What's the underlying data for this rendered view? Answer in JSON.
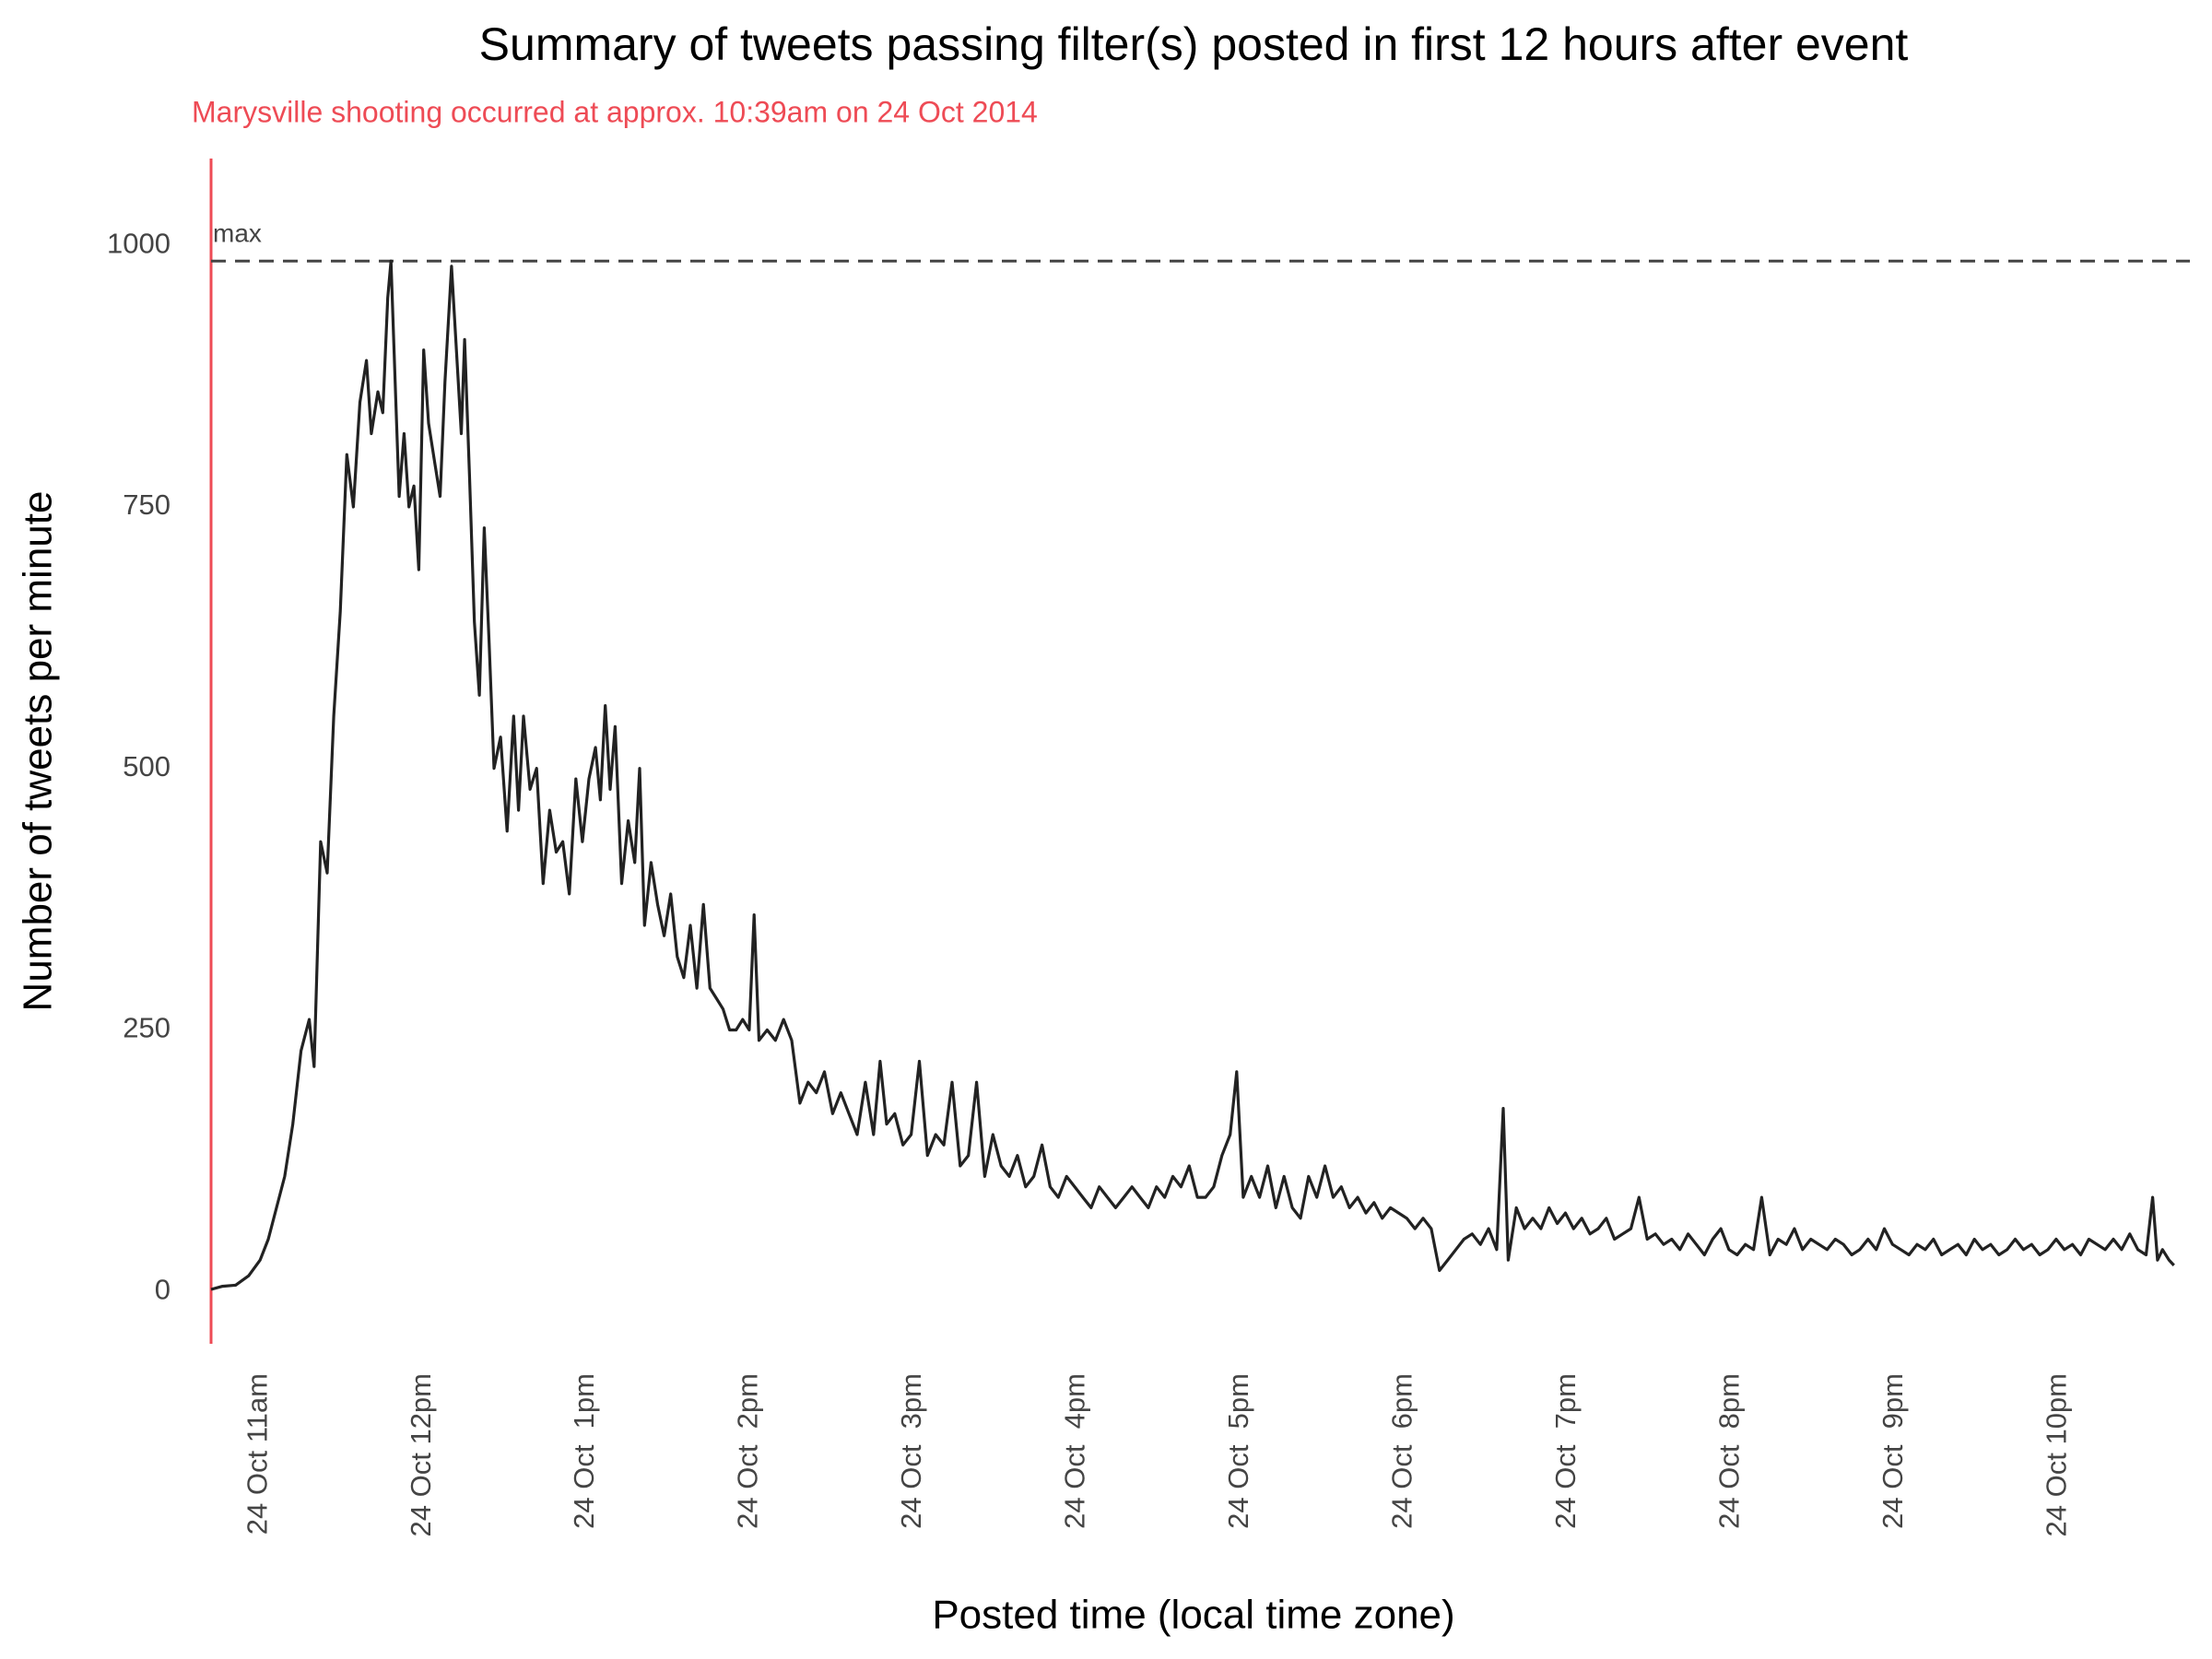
{
  "chart_data": {
    "type": "line",
    "title": "Summary of tweets passing filter(s) posted in first 12 hours after event",
    "subtitle": "Marysville shooting occurred at approx. 10:39am on 24 Oct 2014",
    "x_label": "Posted time (local time zone)",
    "y_label": "Number of tweets per minute",
    "color": "#222222",
    "accent_color": "#ee4b55",
    "vline": {
      "x": 10.65
    },
    "hline": {
      "y": 985,
      "label": "max",
      "color": "#444444",
      "dashed": true
    },
    "grid": false,
    "xlim": [
      10.65,
      22.68
    ],
    "ylim": [
      -50,
      1083
    ],
    "yticks": [
      0,
      250,
      500,
      750,
      1000
    ],
    "xticks": [
      {
        "value": 11,
        "label": "24 Oct 11am"
      },
      {
        "value": 12,
        "label": "24 Oct 12pm"
      },
      {
        "value": 13,
        "label": "24 Oct  1pm"
      },
      {
        "value": 14,
        "label": "24 Oct  2pm"
      },
      {
        "value": 15,
        "label": "24 Oct  3pm"
      },
      {
        "value": 16,
        "label": "24 Oct  4pm"
      },
      {
        "value": 17,
        "label": "24 Oct  5pm"
      },
      {
        "value": 18,
        "label": "24 Oct  6pm"
      },
      {
        "value": 19,
        "label": "24 Oct  7pm"
      },
      {
        "value": 20,
        "label": "24 Oct  8pm"
      },
      {
        "value": 21,
        "label": "24 Oct  9pm"
      },
      {
        "value": 22,
        "label": "24 Oct 10pm"
      }
    ],
    "x": [
      10.65,
      10.72,
      10.8,
      10.88,
      10.95,
      11.0,
      11.05,
      11.1,
      11.15,
      11.2,
      11.25,
      11.28,
      11.32,
      11.36,
      11.4,
      11.44,
      11.48,
      11.52,
      11.56,
      11.6,
      11.63,
      11.67,
      11.7,
      11.73,
      11.75,
      11.78,
      11.8,
      11.83,
      11.86,
      11.89,
      11.92,
      11.95,
      11.98,
      12.02,
      12.05,
      12.08,
      12.12,
      12.15,
      12.18,
      12.2,
      12.23,
      12.26,
      12.29,
      12.32,
      12.35,
      12.38,
      12.42,
      12.46,
      12.5,
      12.53,
      12.56,
      12.6,
      12.64,
      12.68,
      12.72,
      12.76,
      12.8,
      12.84,
      12.88,
      12.92,
      12.96,
      13.0,
      13.03,
      13.06,
      13.09,
      13.12,
      13.16,
      13.2,
      13.24,
      13.27,
      13.3,
      13.34,
      13.38,
      13.42,
      13.46,
      13.5,
      13.54,
      13.58,
      13.62,
      13.66,
      13.7,
      13.74,
      13.78,
      13.82,
      13.86,
      13.9,
      13.94,
      13.97,
      14.0,
      14.05,
      14.1,
      14.15,
      14.2,
      14.25,
      14.3,
      14.35,
      14.4,
      14.45,
      14.5,
      14.55,
      14.6,
      14.65,
      14.7,
      14.74,
      14.78,
      14.83,
      14.88,
      14.93,
      14.98,
      15.03,
      15.08,
      15.13,
      15.18,
      15.23,
      15.28,
      15.33,
      15.38,
      15.43,
      15.48,
      15.53,
      15.58,
      15.63,
      15.68,
      15.73,
      15.78,
      15.83,
      15.88,
      15.93,
      15.98,
      16.03,
      16.08,
      16.13,
      16.18,
      16.23,
      16.28,
      16.33,
      16.38,
      16.43,
      16.48,
      16.53,
      16.58,
      16.63,
      16.68,
      16.73,
      16.78,
      16.83,
      16.88,
      16.92,
      16.96,
      17.01,
      17.06,
      17.11,
      17.16,
      17.21,
      17.26,
      17.31,
      17.36,
      17.41,
      17.46,
      17.51,
      17.56,
      17.61,
      17.66,
      17.71,
      17.76,
      17.81,
      17.86,
      17.91,
      17.96,
      18.01,
      18.06,
      18.11,
      18.16,
      18.21,
      18.26,
      18.31,
      18.36,
      18.41,
      18.46,
      18.51,
      18.55,
      18.58,
      18.63,
      18.68,
      18.73,
      18.78,
      18.83,
      18.88,
      18.93,
      18.98,
      19.03,
      19.08,
      19.13,
      19.18,
      19.23,
      19.28,
      19.33,
      19.38,
      19.43,
      19.48,
      19.53,
      19.58,
      19.63,
      19.68,
      19.73,
      19.78,
      19.83,
      19.88,
      19.93,
      19.98,
      20.03,
      20.08,
      20.13,
      20.18,
      20.23,
      20.28,
      20.33,
      20.38,
      20.43,
      20.48,
      20.53,
      20.58,
      20.63,
      20.68,
      20.73,
      20.78,
      20.83,
      20.88,
      20.93,
      20.98,
      21.03,
      21.08,
      21.13,
      21.18,
      21.23,
      21.28,
      21.33,
      21.38,
      21.43,
      21.48,
      21.53,
      21.58,
      21.63,
      21.68,
      21.73,
      21.78,
      21.83,
      21.88,
      21.93,
      21.98,
      22.03,
      22.08,
      22.13,
      22.18,
      22.23,
      22.28,
      22.33,
      22.38,
      22.43,
      22.48,
      22.52,
      22.55,
      22.58,
      22.62,
      22.65
    ],
    "values": [
      2,
      5,
      6,
      15,
      30,
      50,
      80,
      110,
      160,
      230,
      260,
      215,
      430,
      400,
      550,
      650,
      800,
      750,
      850,
      890,
      820,
      860,
      840,
      950,
      985,
      850,
      760,
      820,
      750,
      770,
      690,
      900,
      830,
      790,
      760,
      870,
      980,
      900,
      820,
      910,
      780,
      640,
      570,
      730,
      620,
      500,
      530,
      440,
      550,
      460,
      550,
      480,
      500,
      390,
      460,
      420,
      430,
      380,
      490,
      430,
      490,
      520,
      470,
      560,
      480,
      540,
      390,
      450,
      410,
      500,
      350,
      410,
      370,
      340,
      380,
      320,
      300,
      350,
      290,
      370,
      290,
      280,
      270,
      250,
      250,
      260,
      250,
      360,
      240,
      250,
      240,
      260,
      240,
      180,
      200,
      190,
      210,
      170,
      190,
      170,
      150,
      200,
      150,
      220,
      160,
      170,
      140,
      150,
      220,
      130,
      150,
      140,
      200,
      120,
      130,
      200,
      110,
      150,
      120,
      110,
      130,
      100,
      110,
      140,
      100,
      90,
      110,
      100,
      90,
      80,
      100,
      90,
      80,
      90,
      100,
      90,
      80,
      100,
      90,
      110,
      100,
      120,
      90,
      90,
      100,
      130,
      150,
      210,
      90,
      110,
      90,
      120,
      80,
      110,
      80,
      70,
      110,
      90,
      120,
      90,
      100,
      80,
      90,
      75,
      85,
      70,
      80,
      75,
      70,
      60,
      70,
      60,
      20,
      30,
      40,
      50,
      55,
      45,
      60,
      40,
      175,
      30,
      80,
      60,
      70,
      60,
      80,
      65,
      75,
      60,
      70,
      55,
      60,
      70,
      50,
      55,
      60,
      90,
      50,
      55,
      45,
      50,
      40,
      55,
      45,
      35,
      50,
      60,
      40,
      35,
      45,
      40,
      90,
      35,
      50,
      45,
      60,
      40,
      50,
      45,
      40,
      50,
      45,
      35,
      40,
      50,
      40,
      60,
      45,
      40,
      35,
      45,
      40,
      50,
      35,
      40,
      45,
      35,
      50,
      40,
      45,
      35,
      40,
      50,
      40,
      45,
      35,
      40,
      50,
      40,
      45,
      35,
      50,
      45,
      40,
      50,
      40,
      55,
      40,
      35,
      90,
      30,
      40,
      30,
      25
    ]
  }
}
